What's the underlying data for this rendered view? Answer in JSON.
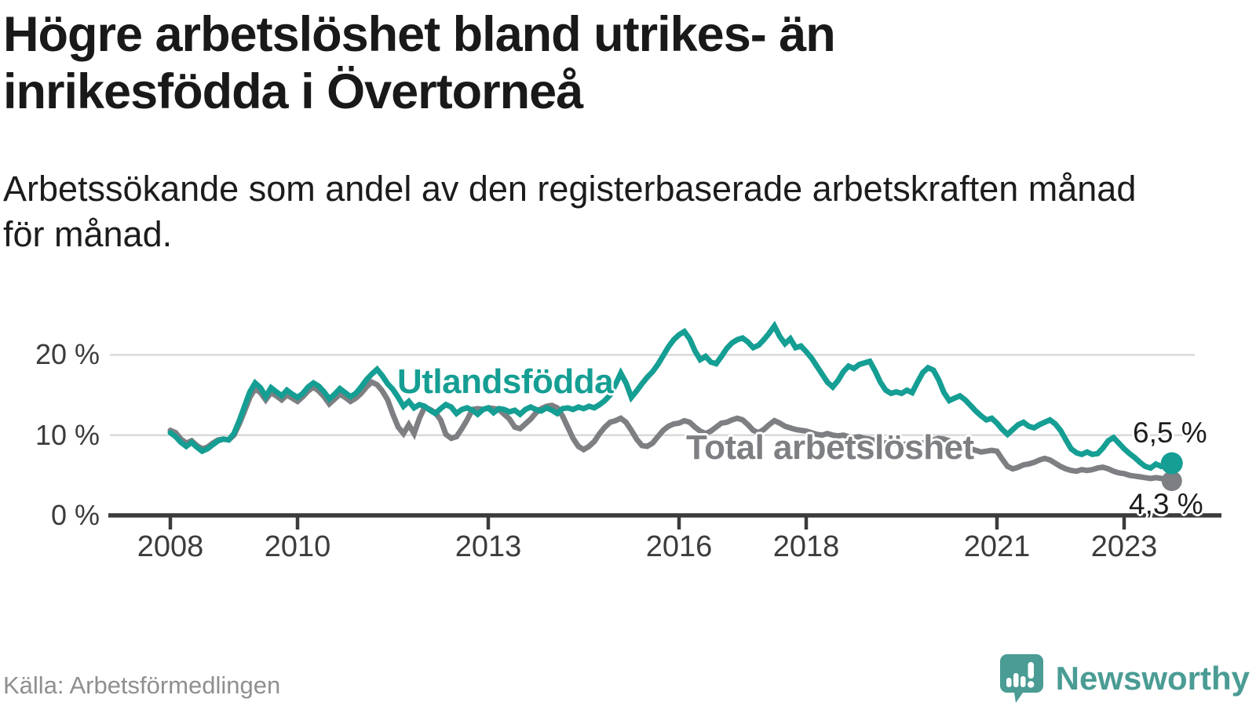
{
  "header": {
    "title": "Högre arbetslöshet bland utrikes- än inrikesfödda i Övertorneå",
    "title_line1": "Högre arbetslöshet bland utrikes- än",
    "title_line2": "inrikesfödda i Övertorneå",
    "subtitle": "Arbetssökande som andel av den registerbaserade arbetskraften månad för månad.",
    "subtitle_line1": "Arbetssökande som andel av den registerbaserade arbetskraften månad",
    "subtitle_line2": "för månad."
  },
  "footer": {
    "source": "Källa: Arbetsförmedlingen",
    "brand_name": "Newsworthy",
    "brand_icon": "speech-bubble-bar-chart-icon",
    "brand_color": "#4a9c94"
  },
  "colors": {
    "background": "#ffffff",
    "title_text": "#191919",
    "axis": "#3b3b3b",
    "tick_text": "#3c3c3c",
    "gridline": "#d9d9d9",
    "utlandsfodda": "#159e93",
    "total": "#7d7f82",
    "end_label_text": "#1d1d1d"
  },
  "chart_data": {
    "type": "line",
    "title": "Högre arbetslöshet bland utrikes- än inrikesfödda i Övertorneå",
    "xlabel": "",
    "ylabel": "Arbetssökande som andel av den registerbaserade arbetskraften",
    "x_unit": "month",
    "x_start": "2008-01",
    "x_end": "2023-10",
    "ylim": [
      0,
      24
    ],
    "grid": "horizontal",
    "legend_position": "inline-labels",
    "xticks": [
      {
        "year": 2008,
        "label": "2008"
      },
      {
        "year": 2010,
        "label": "2010"
      },
      {
        "year": 2013,
        "label": "2013"
      },
      {
        "year": 2016,
        "label": "2016"
      },
      {
        "year": 2018,
        "label": "2018"
      },
      {
        "year": 2021,
        "label": "2021"
      },
      {
        "year": 2023,
        "label": "2023"
      }
    ],
    "yticks": [
      {
        "value": 0,
        "label": "0 %"
      },
      {
        "value": 10,
        "label": "10 %"
      },
      {
        "value": 20,
        "label": "20 %"
      }
    ],
    "series": [
      {
        "name": "Utlandsfödda",
        "color": "#159e93",
        "end_label": "6,5 %",
        "end_value": 6.5,
        "values": [
          10.3,
          9.8,
          9.1,
          8.6,
          9.1,
          8.5,
          8.0,
          8.3,
          8.8,
          9.3,
          9.5,
          9.4,
          10.2,
          11.8,
          13.6,
          15.4,
          16.5,
          15.9,
          14.8,
          15.9,
          15.4,
          14.9,
          15.6,
          15.1,
          14.7,
          15.2,
          16.0,
          16.5,
          16.1,
          15.4,
          14.5,
          15.1,
          15.8,
          15.3,
          14.8,
          15.2,
          16.0,
          16.9,
          17.6,
          18.2,
          17.4,
          16.4,
          15.7,
          14.7,
          13.6,
          14.2,
          13.4,
          13.8,
          13.6,
          13.1,
          12.7,
          13.3,
          13.8,
          13.5,
          12.7,
          13.2,
          13.4,
          13.1,
          12.6,
          13.2,
          13.4,
          12.8,
          13.3,
          13.2,
          12.9,
          13.1,
          12.6,
          13.2,
          13.5,
          13.2,
          13.0,
          13.4,
          13.1,
          12.7,
          13.3,
          13.4,
          13.2,
          13.5,
          13.3,
          13.6,
          13.4,
          13.8,
          14.3,
          15.0,
          16.3,
          17.7,
          16.5,
          14.7,
          15.5,
          16.4,
          17.2,
          17.9,
          18.8,
          19.9,
          21.0,
          21.9,
          22.5,
          22.9,
          22.0,
          20.5,
          19.4,
          19.8,
          19.1,
          18.9,
          19.8,
          20.8,
          21.5,
          21.9,
          22.1,
          21.6,
          20.9,
          21.2,
          21.9,
          22.7,
          23.6,
          22.3,
          21.4,
          22.0,
          20.9,
          21.1,
          20.4,
          19.6,
          18.6,
          17.6,
          16.6,
          16.0,
          16.8,
          17.9,
          18.6,
          18.3,
          18.8,
          19.0,
          19.2,
          18.0,
          16.6,
          15.6,
          15.2,
          15.4,
          15.2,
          15.6,
          15.3,
          16.6,
          17.8,
          18.4,
          18.1,
          16.9,
          15.3,
          14.3,
          14.6,
          14.9,
          14.4,
          13.7,
          13.0,
          12.4,
          11.9,
          12.1,
          11.5,
          10.7,
          10.1,
          10.7,
          11.3,
          11.6,
          11.1,
          10.9,
          11.3,
          11.6,
          11.9,
          11.4,
          10.6,
          9.4,
          8.3,
          7.8,
          7.6,
          7.9,
          7.6,
          7.7,
          8.4,
          9.3,
          9.7,
          9.0,
          8.3,
          7.7,
          7.2,
          6.6,
          6.1,
          5.9,
          6.4,
          6.1,
          6.3,
          6.5
        ]
      },
      {
        "name": "Total arbetslöshet",
        "color": "#7d7f82",
        "end_label": "4,3 %",
        "end_value": 4.3,
        "values": [
          10.6,
          10.3,
          9.5,
          9.0,
          9.3,
          8.7,
          8.3,
          8.5,
          9.0,
          9.4,
          9.5,
          9.4,
          10.0,
          11.4,
          13.0,
          14.7,
          15.8,
          15.3,
          14.4,
          15.3,
          14.9,
          14.4,
          15.0,
          14.6,
          14.2,
          14.8,
          15.5,
          16.0,
          15.5,
          14.8,
          13.9,
          14.5,
          15.1,
          14.7,
          14.2,
          14.6,
          15.2,
          16.0,
          16.6,
          16.3,
          15.5,
          14.4,
          12.6,
          11.0,
          10.2,
          11.3,
          10.2,
          12.1,
          13.5,
          13.2,
          12.8,
          11.9,
          10.1,
          9.6,
          9.8,
          10.8,
          11.9,
          13.2,
          13.3,
          13.2,
          13.4,
          13.3,
          13.2,
          12.6,
          12.0,
          11.0,
          10.8,
          11.4,
          12.0,
          12.8,
          13.3,
          13.6,
          13.7,
          13.4,
          12.4,
          11.0,
          9.6,
          8.6,
          8.2,
          8.6,
          9.2,
          10.2,
          11.0,
          11.6,
          11.8,
          12.1,
          11.6,
          10.6,
          9.5,
          8.7,
          8.6,
          9.0,
          9.8,
          10.6,
          11.1,
          11.4,
          11.5,
          11.8,
          11.6,
          11.0,
          10.5,
          10.2,
          10.5,
          11.0,
          11.5,
          11.6,
          11.9,
          12.1,
          11.9,
          11.3,
          10.6,
          10.3,
          10.7,
          11.3,
          11.8,
          11.5,
          11.1,
          10.9,
          10.7,
          10.6,
          10.5,
          10.3,
          10.1,
          10.0,
          10.2,
          10.0,
          9.9,
          10.0,
          9.8,
          9.7,
          9.8,
          9.6,
          9.5,
          9.3,
          9.1,
          9.0,
          9.1,
          8.9,
          8.8,
          8.9,
          8.7,
          8.8,
          9.0,
          9.2,
          9.4,
          9.6,
          9.5,
          9.3,
          9.1,
          8.9,
          8.6,
          8.3,
          8.1,
          7.9,
          8.0,
          8.1,
          8.0,
          7.0,
          6.1,
          5.8,
          6.0,
          6.3,
          6.4,
          6.6,
          6.9,
          7.1,
          6.9,
          6.5,
          6.1,
          5.8,
          5.6,
          5.5,
          5.7,
          5.6,
          5.7,
          5.9,
          6.0,
          5.8,
          5.5,
          5.3,
          5.2,
          5.0,
          4.9,
          4.8,
          4.7,
          4.6,
          4.7,
          4.6,
          4.5,
          4.3
        ]
      }
    ],
    "annotations": [
      {
        "text": "Utlandsfödda",
        "series": "Utlandsfödda"
      },
      {
        "text": "Total arbetslöshet",
        "series": "Total arbetslöshet"
      },
      {
        "text": "6,5 %",
        "series": "Utlandsfödda"
      },
      {
        "text": "4,3 %",
        "series": "Total arbetslöshet"
      }
    ]
  }
}
